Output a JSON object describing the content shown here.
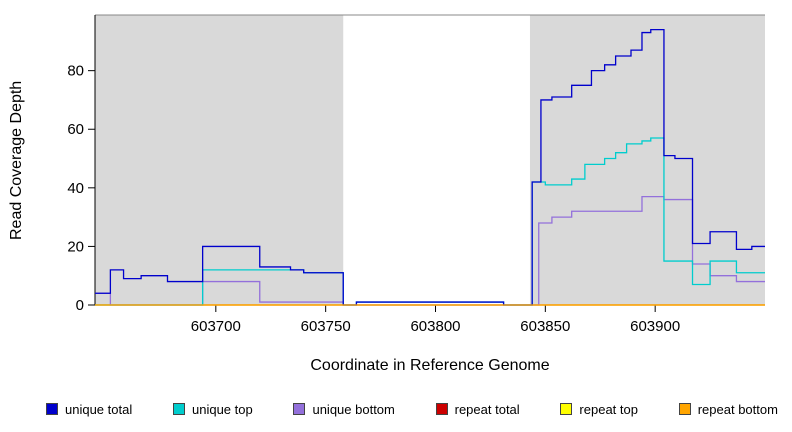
{
  "chart_data": {
    "type": "line",
    "subtype": "step-coverage-plot",
    "title": "",
    "xlabel": "Coordinate in Reference Genome",
    "ylabel": "Read Coverage Depth",
    "xlim": [
      603645,
      603950
    ],
    "ylim": [
      0,
      99
    ],
    "x_ticks": [
      603700,
      603750,
      603800,
      603850,
      603900
    ],
    "y_ticks": [
      0,
      20,
      40,
      60,
      80
    ],
    "grid": false,
    "legend_position": "bottom",
    "plot_bg": "#ffffff",
    "shade_color": "#d9d9d9",
    "axis_color": "#000000",
    "border_color": "#888888",
    "shaded_regions": [
      [
        603645,
        603758
      ],
      [
        603843,
        603950
      ]
    ],
    "draw_order": [
      "repeat total",
      "repeat top",
      "unique bottom",
      "unique top",
      "unique total",
      "repeat bottom"
    ],
    "series": [
      {
        "name": "unique total",
        "color": "#0000CC",
        "steps": [
          [
            603645,
            4
          ],
          [
            603652,
            12
          ],
          [
            603658,
            9
          ],
          [
            603666,
            10
          ],
          [
            603678,
            8
          ],
          [
            603694,
            20
          ],
          [
            603720,
            13
          ],
          [
            603734,
            12
          ],
          [
            603740,
            11
          ],
          [
            603758,
            0
          ],
          [
            603764,
            1
          ],
          [
            603831,
            0
          ],
          [
            603844,
            42
          ],
          [
            603848,
            70
          ],
          [
            603853,
            71
          ],
          [
            603862,
            75
          ],
          [
            603871,
            80
          ],
          [
            603877,
            82
          ],
          [
            603882,
            85
          ],
          [
            603889,
            87
          ],
          [
            603894,
            93
          ],
          [
            603898,
            94
          ],
          [
            603904,
            51
          ],
          [
            603909,
            50
          ],
          [
            603917,
            21
          ],
          [
            603925,
            25
          ],
          [
            603937,
            19
          ],
          [
            603944,
            20
          ]
        ]
      },
      {
        "name": "unique top",
        "color": "#00CDCD",
        "steps": [
          [
            603645,
            0
          ],
          [
            603694,
            12
          ],
          [
            603740,
            11
          ],
          [
            603758,
            0
          ],
          [
            603764,
            1
          ],
          [
            603831,
            0
          ],
          [
            603844,
            42
          ],
          [
            603850,
            41
          ],
          [
            603862,
            43
          ],
          [
            603868,
            48
          ],
          [
            603877,
            50
          ],
          [
            603882,
            52
          ],
          [
            603887,
            55
          ],
          [
            603894,
            56
          ],
          [
            603898,
            57
          ],
          [
            603904,
            15
          ],
          [
            603917,
            7
          ],
          [
            603925,
            15
          ],
          [
            603937,
            11
          ]
        ]
      },
      {
        "name": "unique bottom",
        "color": "#9370DB",
        "steps": [
          [
            603645,
            4
          ],
          [
            603652,
            0
          ],
          [
            603694,
            8
          ],
          [
            603720,
            1
          ],
          [
            603758,
            0
          ],
          [
            603847,
            28
          ],
          [
            603853,
            30
          ],
          [
            603862,
            32
          ],
          [
            603894,
            37
          ],
          [
            603904,
            36
          ],
          [
            603917,
            14
          ],
          [
            603925,
            10
          ],
          [
            603937,
            8
          ]
        ]
      },
      {
        "name": "repeat total",
        "color": "#CD0000",
        "steps": [
          [
            603645,
            0
          ]
        ]
      },
      {
        "name": "repeat top",
        "color": "#FFFF00",
        "steps": [
          [
            603645,
            0
          ]
        ]
      },
      {
        "name": "repeat bottom",
        "color": "#FFA500",
        "steps": [
          [
            603645,
            0
          ]
        ]
      }
    ]
  }
}
